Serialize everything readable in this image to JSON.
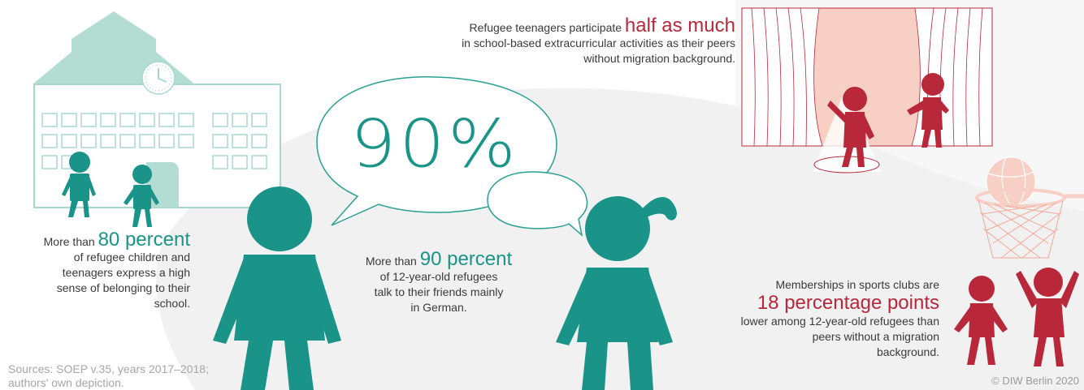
{
  "colors": {
    "teal": "#1a9488",
    "mint": "#b3ddd3",
    "red": "#b8273a",
    "pink": "#f7cfc4",
    "grey": "#f1f1f1"
  },
  "icons": [
    "school-building-icon",
    "clock-icon",
    "child-figure-icon",
    "speech-bubble-icon",
    "stage-curtain-icon",
    "spotlight-icon",
    "basketball-hoop-icon"
  ],
  "belonging": {
    "prefix": "More than",
    "highlight": "80 percent",
    "lines": [
      "of refugee children and",
      "teenagers express a high",
      "sense of belonging to their",
      "school."
    ]
  },
  "speech_bubble": {
    "value": "90%"
  },
  "language": {
    "prefix": "More than",
    "highlight": "90 percent",
    "lines": [
      "of 12-year-old refugees",
      "talk to their friends mainly",
      "in German."
    ]
  },
  "extracurricular": {
    "prefix": "Refugee teenagers participate",
    "highlight": "half as much",
    "lines": [
      "in school-based extracurricular activities as their peers",
      "without migration background."
    ]
  },
  "sports": {
    "prefix": "Memberships in sports clubs are",
    "highlight": "18 percentage points",
    "lines": [
      "lower among 12-year-old refugees than",
      "peers without a migration",
      "background."
    ]
  },
  "footer": {
    "sources": "Sources: SOEP v.35, years 2017–2018; authors' own depiction.",
    "copyright": "© DIW Berlin 2020"
  }
}
